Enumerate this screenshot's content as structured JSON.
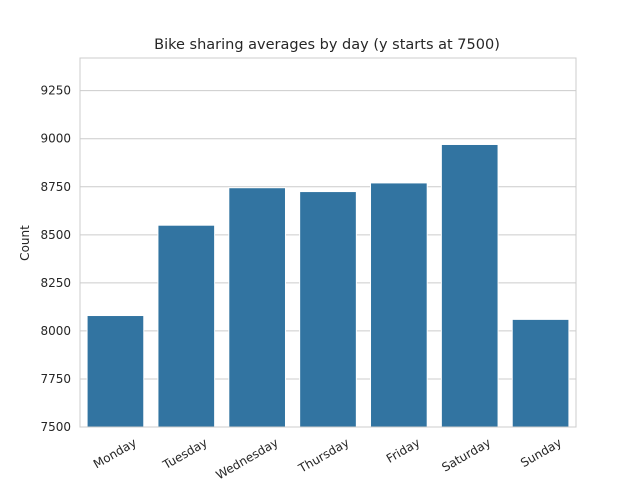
{
  "chart_data": {
    "type": "bar",
    "title": "Bike sharing averages by day (y starts at 7500)",
    "xlabel": "",
    "ylabel": "Count",
    "categories": [
      "Monday",
      "Tuesday",
      "Wednesday",
      "Thursday",
      "Friday",
      "Saturday",
      "Sunday"
    ],
    "values": [
      8080,
      8550,
      8745,
      8725,
      8770,
      8970,
      8060
    ],
    "ylim": [
      7500,
      9420
    ],
    "yticks": [
      7500,
      7750,
      8000,
      8250,
      8500,
      8750,
      9000,
      9250
    ],
    "grid": true,
    "bar_color": "#3274a1",
    "grid_color": "#cccccc",
    "frame_color": "#cccccc"
  }
}
